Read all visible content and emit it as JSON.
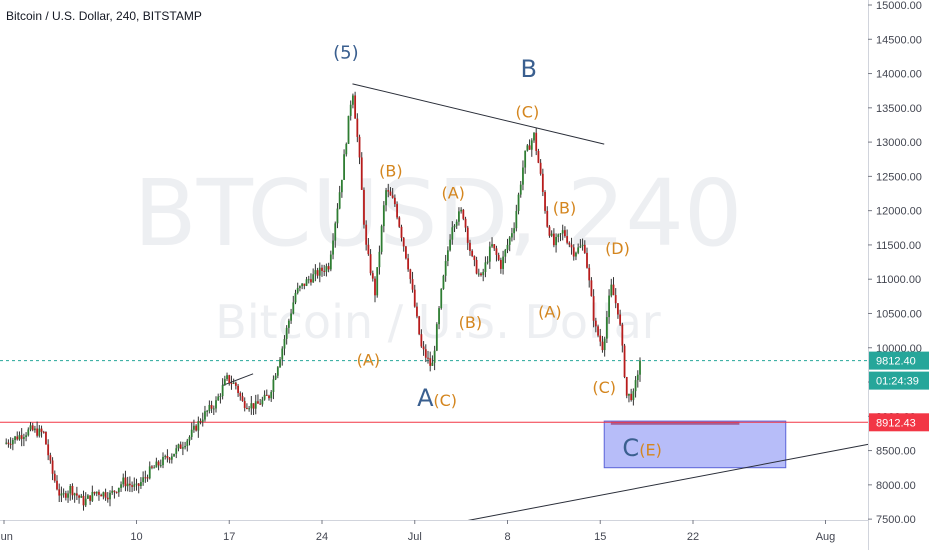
{
  "header": {
    "title": "Bitcoin / U.S. Dollar, 240, BITSTAMP"
  },
  "watermark": {
    "symbol": "BTCUSD, 240",
    "name": "Bitcoin / U.S. Dollar"
  },
  "colors": {
    "up": "#26a69a",
    "down": "#ef5350",
    "candle_body_up": "#2e7d32",
    "candle_body_down": "#b71c1c",
    "last_price": "#26a69a",
    "support": "#f23645",
    "zone": "#7b86f4",
    "wave_orange": "#d4861f",
    "wave_blue": "#3a5f8f"
  },
  "chart_data": {
    "type": "candlestick",
    "symbol": "BTCUSD",
    "interval": "240",
    "exchange": "BITSTAMP",
    "y_range": [
      7500,
      15000
    ],
    "y_ticks": [
      "15000.00",
      "14500.00",
      "14000.00",
      "13500.00",
      "13000.00",
      "12500.00",
      "12000.00",
      "11500.00",
      "11000.00",
      "10500.00",
      "10000.00",
      "9500.00",
      "9000.00",
      "8500.00",
      "8000.00",
      "7500.00"
    ],
    "x_ticks": [
      {
        "label": "Jun",
        "day": 0
      },
      {
        "label": "10",
        "day": 10
      },
      {
        "label": "17",
        "day": 17
      },
      {
        "label": "24",
        "day": 24
      },
      {
        "label": "Jul",
        "day": 31
      },
      {
        "label": "8",
        "day": 38
      },
      {
        "label": "15",
        "day": 45
      },
      {
        "label": "22",
        "day": 52
      },
      {
        "label": "Aug",
        "day": 62
      }
    ],
    "price_path": [
      [
        0,
        8600
      ],
      [
        1,
        8700
      ],
      [
        2,
        8800
      ],
      [
        3,
        8750
      ],
      [
        3.6,
        8200
      ],
      [
        4.3,
        7800
      ],
      [
        5,
        7950
      ],
      [
        6,
        7750
      ],
      [
        7,
        7900
      ],
      [
        8,
        7850
      ],
      [
        9,
        8050
      ],
      [
        10,
        7950
      ],
      [
        11,
        8200
      ],
      [
        12,
        8350
      ],
      [
        13,
        8500
      ],
      [
        14,
        8700
      ],
      [
        15,
        9000
      ],
      [
        16,
        9200
      ],
      [
        16.8,
        9550
      ],
      [
        17.5,
        9450
      ],
      [
        18,
        9200
      ],
      [
        19,
        9150
      ],
      [
        20,
        9300
      ],
      [
        21,
        10000
      ],
      [
        22,
        10800
      ],
      [
        23,
        11000
      ],
      [
        24.5,
        11200
      ],
      [
        25.5,
        12500
      ],
      [
        26.3,
        13800
      ],
      [
        26.8,
        12800
      ],
      [
        27.3,
        11500
      ],
      [
        28,
        10800
      ],
      [
        28.8,
        12300
      ],
      [
        29.5,
        12100
      ],
      [
        30.5,
        11200
      ],
      [
        31.5,
        10000
      ],
      [
        32.3,
        9700
      ],
      [
        33,
        10800
      ],
      [
        33.8,
        11800
      ],
      [
        34.6,
        12000
      ],
      [
        35.3,
        11300
      ],
      [
        36,
        11000
      ],
      [
        36.8,
        11500
      ],
      [
        37.5,
        11200
      ],
      [
        38.5,
        11800
      ],
      [
        39.3,
        12800
      ],
      [
        40,
        13100
      ],
      [
        40.5,
        12500
      ],
      [
        41,
        11800
      ],
      [
        41.5,
        11500
      ],
      [
        42.2,
        11700
      ],
      [
        43,
        11400
      ],
      [
        43.8,
        11500
      ],
      [
        44.6,
        10300
      ],
      [
        45.2,
        10000
      ],
      [
        45.8,
        10900
      ],
      [
        46.4,
        10500
      ],
      [
        47,
        9300
      ],
      [
        47.5,
        9300
      ],
      [
        48,
        9812.4
      ]
    ],
    "last_price": {
      "value": 9812.4,
      "label": "9812.40",
      "countdown": "01:24:39"
    },
    "support_line": {
      "value": 8912.43,
      "label": "8912.43"
    },
    "target_zone": {
      "y_from": 8250,
      "y_to": 8930,
      "x_from": 45.3,
      "x_to": 59
    },
    "trendlines": [
      {
        "from": [
          26.3,
          13850
        ],
        "to": [
          45.3,
          12970
        ]
      },
      {
        "from": [
          16.5,
          9450
        ],
        "to": [
          18.8,
          9620
        ]
      },
      {
        "from": [
          35,
          7480
        ],
        "to": [
          66,
          8620
        ]
      }
    ],
    "annotations": [
      {
        "text": "(5)",
        "day": 25.8,
        "price": 14220,
        "style": "blue-small"
      },
      {
        "text": "B",
        "day": 39.6,
        "price": 13950,
        "style": "blue"
      },
      {
        "text": "(C)",
        "day": 39.5,
        "price": 13360,
        "style": "orange"
      },
      {
        "text": "(B)",
        "day": 29.2,
        "price": 12500,
        "style": "orange"
      },
      {
        "text": "(A)",
        "day": 33.9,
        "price": 12180,
        "style": "orange"
      },
      {
        "text": "(B)",
        "day": 42.3,
        "price": 11960,
        "style": "orange"
      },
      {
        "text": "(D)",
        "day": 46.3,
        "price": 11370,
        "style": "orange"
      },
      {
        "text": "(A)",
        "day": 41.2,
        "price": 10440,
        "style": "orange"
      },
      {
        "text": "(B)",
        "day": 35.2,
        "price": 10290,
        "style": "orange"
      },
      {
        "text": "(A)",
        "day": 27.5,
        "price": 9740,
        "style": "orange"
      },
      {
        "text": "A",
        "day": 31.8,
        "price": 9150,
        "style": "blue"
      },
      {
        "text": "(C)",
        "day": 33.3,
        "price": 9150,
        "style": "orange"
      },
      {
        "text": "(C)",
        "day": 45.3,
        "price": 9340,
        "style": "orange"
      },
      {
        "text": "C",
        "day": 47.3,
        "price": 8420,
        "style": "blue"
      },
      {
        "text": "(E)",
        "day": 48.8,
        "price": 8430,
        "style": "orange"
      }
    ]
  }
}
